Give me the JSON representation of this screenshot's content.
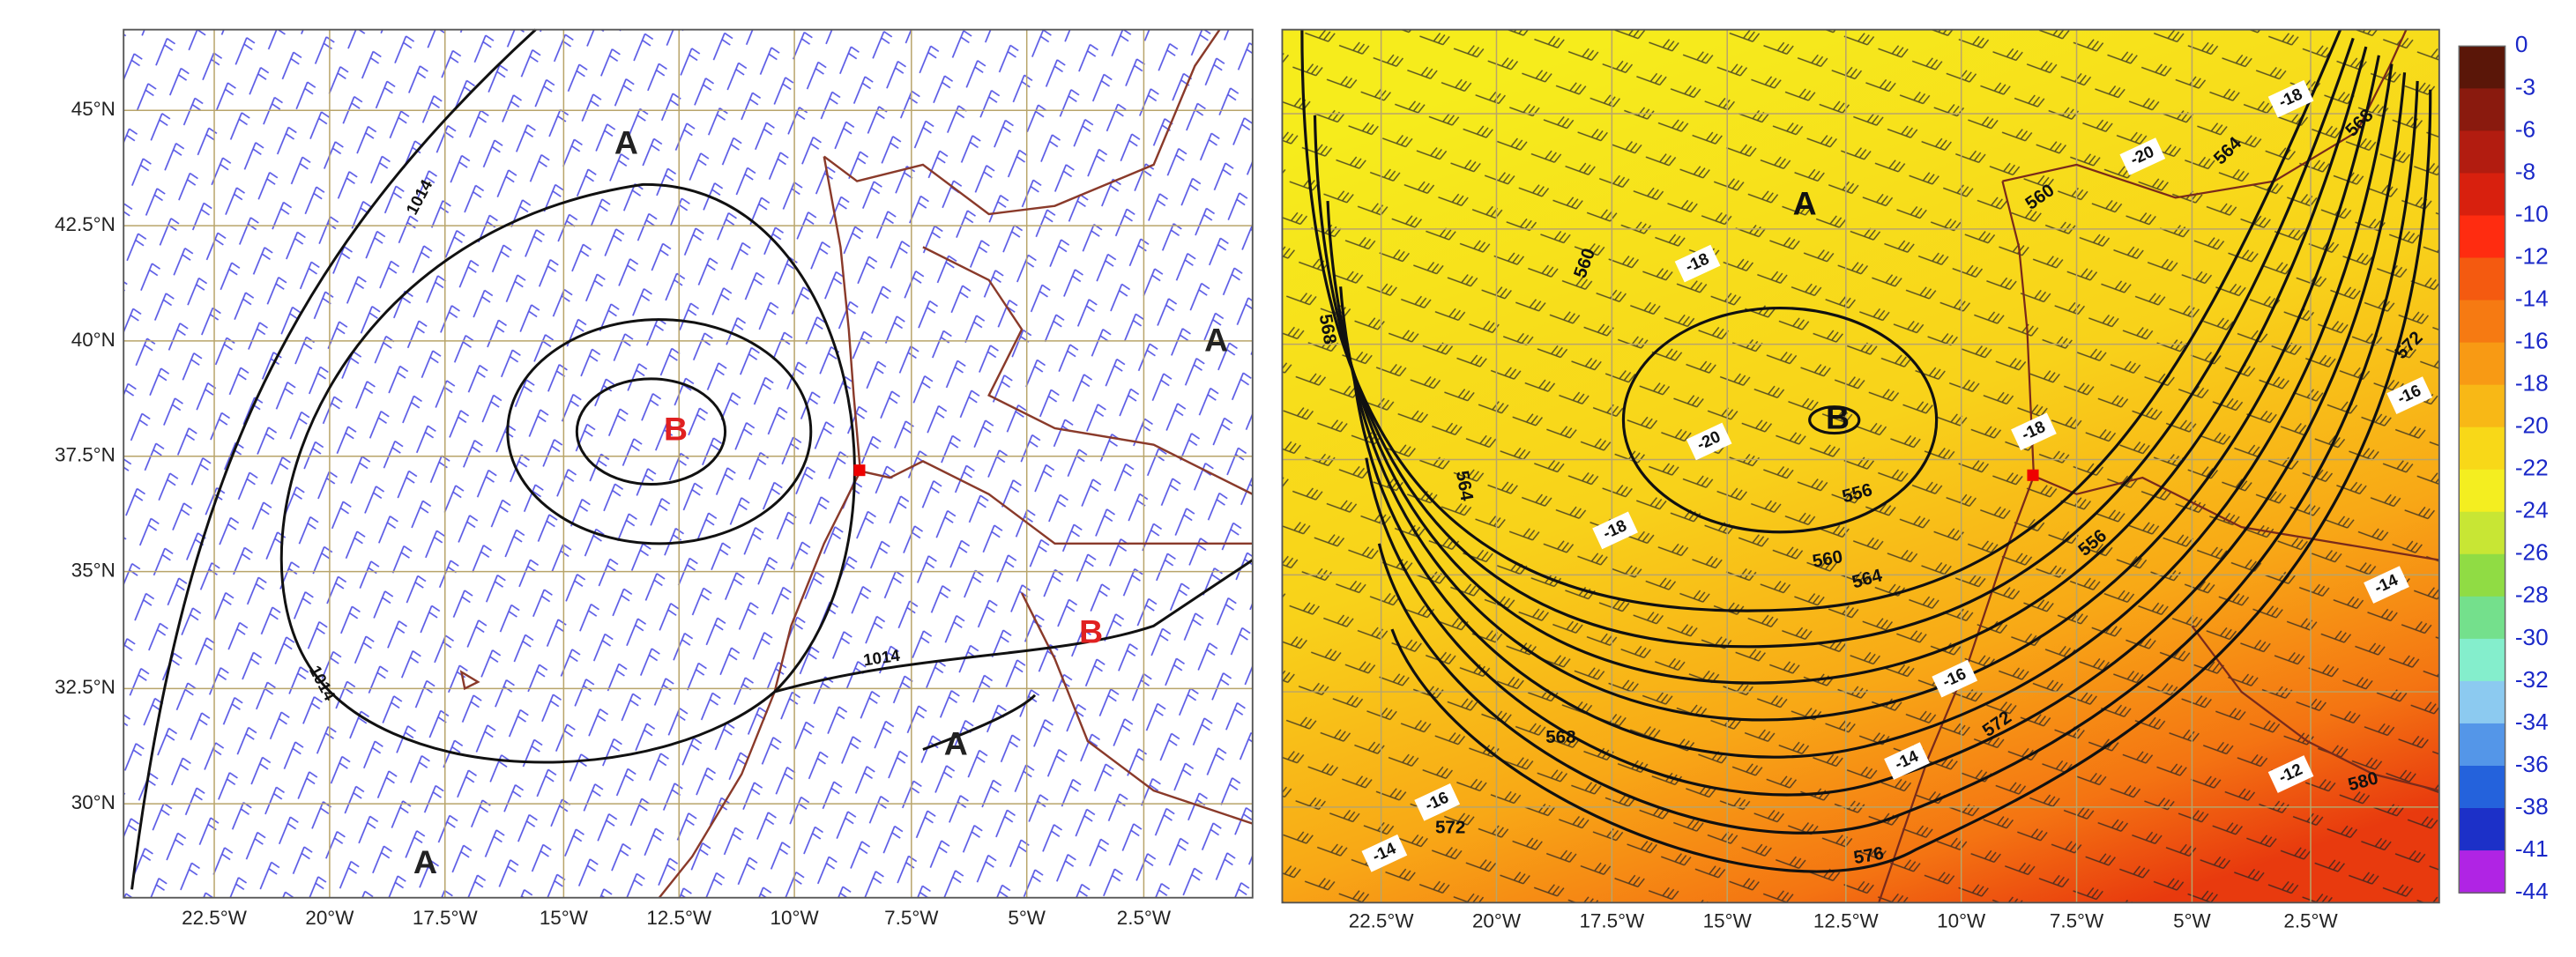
{
  "left_map": {
    "latitude_labels": [
      "45°N",
      "42.5°N",
      "40°N",
      "37.5°N",
      "35°N",
      "32.5°N",
      "30°N"
    ],
    "longitude_labels": [
      "22.5°W",
      "20°W",
      "17.5°W",
      "15°W",
      "12.5°W",
      "10°W",
      "7.5°W",
      "5°W",
      "2.5°W"
    ],
    "isobar_labels": [
      "1014",
      "1014",
      "1014"
    ],
    "pressure_centers": [
      "A",
      "B",
      "A",
      "B",
      "A",
      "A"
    ]
  },
  "right_map": {
    "longitude_labels": [
      "22.5°W",
      "20°W",
      "17.5°W",
      "15°W",
      "12.5°W",
      "10°W",
      "7.5°W",
      "5°W",
      "2.5°W"
    ],
    "height_labels": [
      "568",
      "564",
      "560",
      "556",
      "560",
      "564",
      "568",
      "572",
      "576",
      "580",
      "560",
      "564",
      "568",
      "572",
      "556",
      "572",
      "576"
    ],
    "temperature_labels": [
      "-20",
      "-18",
      "-18",
      "-20",
      "-18",
      "-18",
      "-16",
      "-14",
      "-12",
      "-16",
      "-14",
      "-16",
      "-14"
    ],
    "pressure_centers": [
      "A",
      "B"
    ]
  },
  "colorbar": {
    "labels": [
      "0",
      "-3",
      "-6",
      "-8",
      "-10",
      "-12",
      "-14",
      "-16",
      "-18",
      "-20",
      "-22",
      "-24",
      "-26",
      "-28",
      "-30",
      "-32",
      "-34",
      "-36",
      "-38",
      "-41",
      "-44"
    ],
    "colors": [
      "#5a1608",
      "#8a1a0e",
      "#b21c10",
      "#d8200e",
      "#ff2c10",
      "#f45a10",
      "#f67a12",
      "#f89a14",
      "#f8b816",
      "#f8d818",
      "#f4ee20",
      "#c8e634",
      "#90dc44",
      "#74e08c",
      "#84eecc",
      "#8ccaf0",
      "#5496e8",
      "#2462dc",
      "#1c30c8",
      "#b024e4"
    ]
  }
}
